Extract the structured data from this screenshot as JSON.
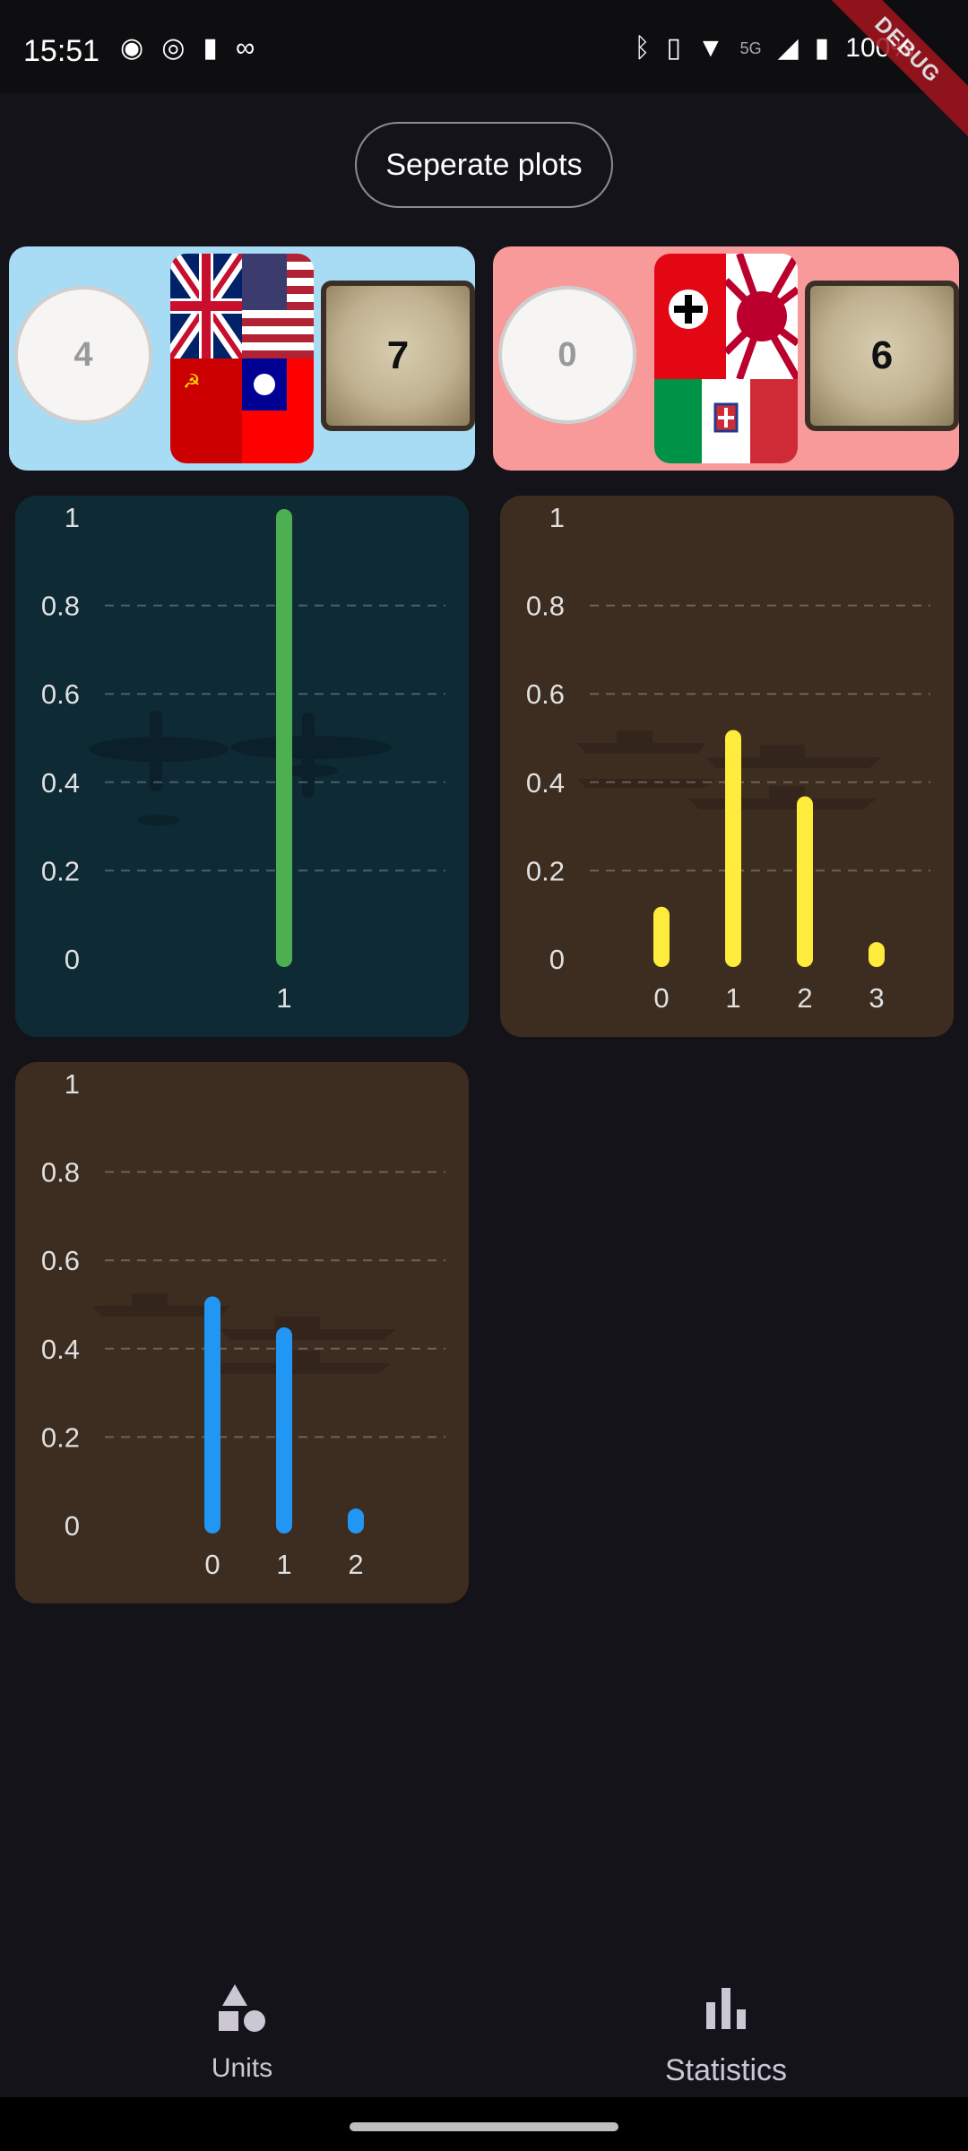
{
  "status_bar": {
    "time": "15:51",
    "network": "5G",
    "battery": "100%",
    "left_icons": [
      "mask-icon",
      "spotify-icon",
      "battery-saver-icon",
      "link-icon"
    ],
    "right_icons": [
      "bluetooth-icon",
      "vibrate-icon",
      "wifi-icon",
      "signal-icon",
      "battery-icon"
    ],
    "debug_label": "DEBUG"
  },
  "header": {
    "separate_plots_label": "Seperate plots"
  },
  "teams": [
    {
      "side": "allies",
      "score": "4",
      "count": "7",
      "color": "#a8dcf5"
    },
    {
      "side": "axis",
      "score": "0",
      "count": "6",
      "color": "#f89a9a"
    }
  ],
  "plots": {
    "air": {
      "bg": "#0e2a35",
      "y_ticks": [
        "1",
        "0.8",
        "0.6",
        "0.4",
        "0.2",
        "0"
      ],
      "x_labels": [
        "1"
      ],
      "values": [
        1.0
      ],
      "color": "#4caf50"
    },
    "sea1": {
      "bg": "#3d2c20",
      "y_ticks": [
        "1",
        "0.8",
        "0.6",
        "0.4",
        "0.2",
        "0"
      ],
      "x_labels": [
        "0",
        "1",
        "2",
        "3"
      ],
      "values": [
        0.1,
        0.5,
        0.35,
        0.0
      ],
      "color": "#ffeb3b"
    },
    "sea2": {
      "bg": "#3d2c20",
      "y_ticks": [
        "1",
        "0.8",
        "0.6",
        "0.4",
        "0.2",
        "0"
      ],
      "x_labels": [
        "0",
        "1",
        "2"
      ],
      "values": [
        0.5,
        0.43,
        0.02
      ],
      "color": "#2196f3"
    }
  },
  "chart_data": [
    {
      "type": "bar",
      "categories": [
        "1"
      ],
      "values": [
        1.0
      ],
      "ylim": [
        0,
        1
      ],
      "grid": true
    },
    {
      "type": "bar",
      "categories": [
        "0",
        "1",
        "2",
        "3"
      ],
      "values": [
        0.1,
        0.5,
        0.35,
        0.0
      ],
      "ylim": [
        0,
        1
      ],
      "grid": true
    },
    {
      "type": "bar",
      "categories": [
        "0",
        "1",
        "2"
      ],
      "values": [
        0.5,
        0.43,
        0.02
      ],
      "ylim": [
        0,
        1
      ],
      "grid": true
    }
  ],
  "bottom_nav": {
    "units_label": "Units",
    "statistics_label": "Statistics",
    "units_icon": "shapes-icon",
    "statistics_icon": "bar-chart-icon"
  }
}
